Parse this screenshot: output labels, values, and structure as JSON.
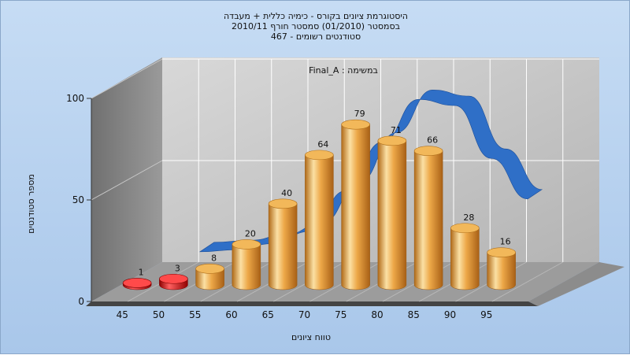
{
  "title_lines": [
    "היסטוגרמת ציונים בקורס - כימיה כללית + מעבדה",
    "בסמסטר  (01/2010)  סמסטר חורף 2010/11",
    "סטודנטים רשומים - 467"
  ],
  "chart_data": {
    "type": "bar",
    "categories": [
      "45",
      "50",
      "55",
      "60",
      "65",
      "70",
      "75",
      "80",
      "85",
      "90",
      "95"
    ],
    "values": [
      1,
      3,
      8,
      20,
      40,
      64,
      79,
      71,
      66,
      28,
      16
    ],
    "bar_colors": [
      "#e01010",
      "#e01010",
      "#e8a040",
      "#e8a040",
      "#e8a040",
      "#e8a040",
      "#e8a040",
      "#e8a040",
      "#e8a040",
      "#e8a040",
      "#e8a040"
    ],
    "trend_line": {
      "color": "#2f6fc7",
      "values": [
        null,
        8,
        9,
        12,
        18,
        38,
        62,
        83,
        80,
        54,
        34
      ]
    },
    "annotation": "Final_A : במשימה",
    "xlabel": "טווח ציונים",
    "ylabel": "מספר סטודנטים",
    "ylim": [
      0,
      100
    ],
    "yticks": [
      "0",
      "50",
      "100"
    ],
    "grid": true
  }
}
